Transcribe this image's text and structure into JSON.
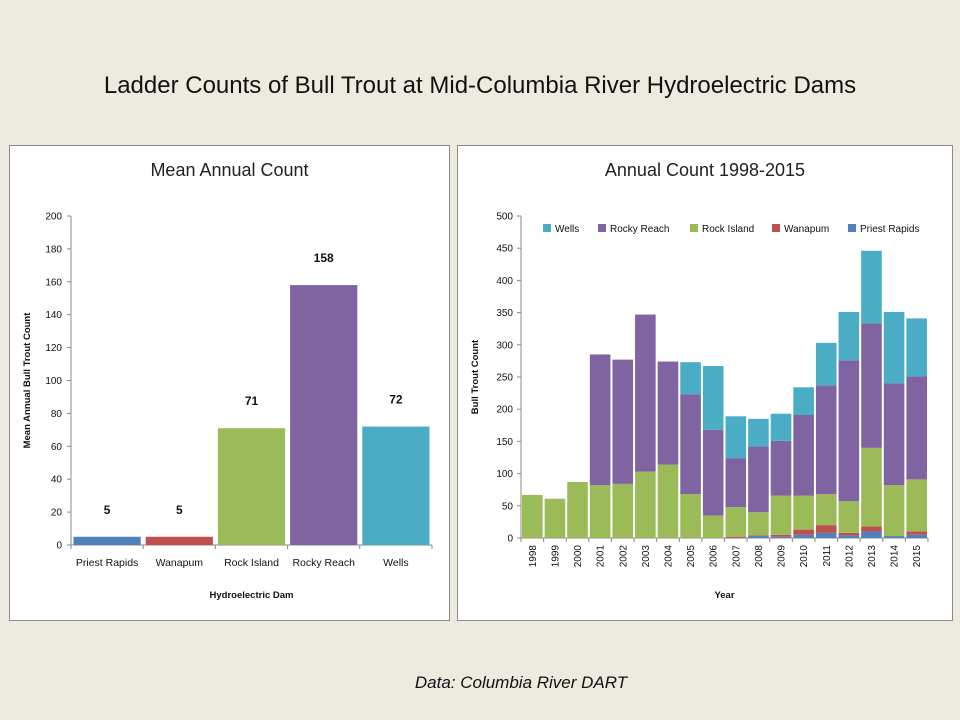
{
  "slide": {
    "title": "Ladder Counts of Bull Trout at Mid-Columbia River Hydroelectric Dams",
    "source": "Data: Columbia River DART"
  },
  "chart_data": [
    {
      "type": "bar",
      "title": "Mean Annual Count",
      "xlabel": "Hydroelectric Dam",
      "ylabel": "Mean Annual Bull Trout Count",
      "categories": [
        "Priest Rapids",
        "Wanapum",
        "Rock Island",
        "Rocky Reach",
        "Wells"
      ],
      "values": [
        5,
        5,
        71,
        158,
        72
      ],
      "data_labels": [
        "5",
        "5",
        "71",
        "158",
        "72"
      ],
      "colors": [
        "#4f81bd",
        "#c0504d",
        "#9bbb59",
        "#8064a2",
        "#4bacc6"
      ],
      "ylim": [
        0,
        200
      ],
      "yticks": [
        0,
        20,
        40,
        60,
        80,
        100,
        120,
        140,
        160,
        180,
        200
      ],
      "grid": false,
      "legend": "none"
    },
    {
      "type": "bar",
      "stacked": true,
      "title": "Annual Count 1998-2015",
      "xlabel": "Year",
      "ylabel": "Bull Trout Count",
      "categories": [
        "1998",
        "1999",
        "2000",
        "2001",
        "2002",
        "2003",
        "2004",
        "2005",
        "2006",
        "2007",
        "2008",
        "2009",
        "2010",
        "2011",
        "2012",
        "2013",
        "2014",
        "2015"
      ],
      "series": [
        {
          "name": "Priest Rapids",
          "color": "#4f81bd",
          "values": [
            0,
            0,
            0,
            0,
            0,
            0,
            0,
            0,
            0,
            0,
            3,
            2,
            5,
            8,
            4,
            10,
            3,
            5
          ]
        },
        {
          "name": "Wanapum",
          "color": "#c0504d",
          "values": [
            0,
            0,
            0,
            0,
            0,
            0,
            0,
            0,
            0,
            2,
            1,
            3,
            8,
            12,
            4,
            8,
            0,
            5
          ]
        },
        {
          "name": "Rock Island",
          "color": "#9bbb59",
          "values": [
            67,
            61,
            87,
            82,
            84,
            103,
            114,
            68,
            35,
            46,
            36,
            61,
            53,
            48,
            49,
            122,
            79,
            81
          ]
        },
        {
          "name": "Rocky Reach",
          "color": "#8064a2",
          "values": [
            0,
            0,
            0,
            203,
            193,
            244,
            160,
            155,
            133,
            76,
            102,
            85,
            125,
            169,
            219,
            193,
            158,
            160
          ]
        },
        {
          "name": "Wells",
          "color": "#4bacc6",
          "values": [
            0,
            0,
            0,
            0,
            0,
            0,
            0,
            50,
            99,
            65,
            43,
            42,
            43,
            66,
            75,
            113,
            111,
            90
          ]
        }
      ],
      "legend_order": [
        "Wells",
        "Rocky Reach",
        "Rock Island",
        "Wanapum",
        "Priest Rapids"
      ],
      "ylim": [
        0,
        500
      ],
      "yticks": [
        0,
        50,
        100,
        150,
        200,
        250,
        300,
        350,
        400,
        450,
        500
      ],
      "grid": false,
      "legend": "top"
    }
  ]
}
